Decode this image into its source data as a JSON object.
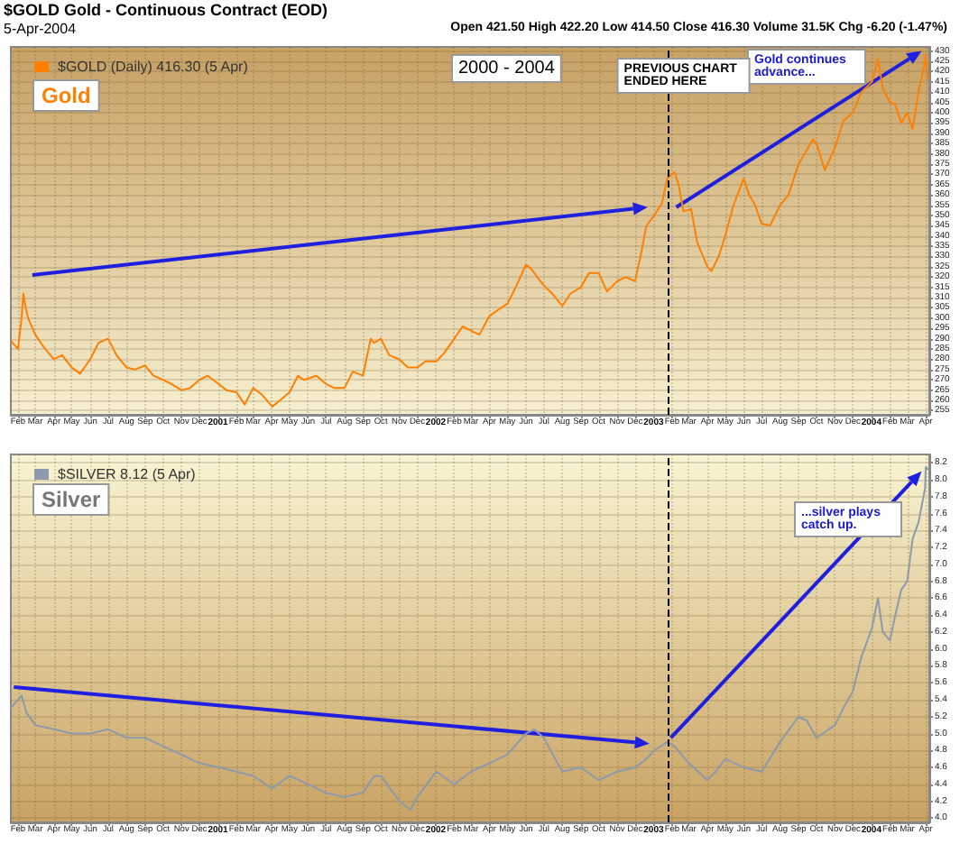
{
  "chart_data": [
    {
      "type": "line",
      "title": "$GOLD Gold - Continuous Contract (EOD)",
      "subtitle": "5-Apr-2004",
      "annotations": [
        "Open 421.50 High 422.20 Low 414.50 Close 416.30 Volume 31.5K Chg -6.20 (-1.47%)",
        "Gold",
        "2000 - 2004",
        "Gold continues advance..."
      ],
      "x": [
        "2000-01-20",
        "2000-02-01",
        "2000-02-07",
        "2000-02-10",
        "2000-02-14",
        "2000-02-18",
        "2000-03-01",
        "2000-03-15",
        "2000-04-01",
        "2000-04-15",
        "2000-05-01",
        "2000-05-15",
        "2000-06-01",
        "2000-06-15",
        "2000-07-01",
        "2000-07-15",
        "2000-08-01",
        "2000-08-15",
        "2000-09-01",
        "2000-09-15",
        "2000-10-01",
        "2000-10-15",
        "2000-11-01",
        "2000-11-15",
        "2000-12-01",
        "2000-12-15",
        "2001-01-02",
        "2001-01-15",
        "2001-02-01",
        "2001-02-15",
        "2001-03-01",
        "2001-03-15",
        "2001-04-02",
        "2001-04-15",
        "2001-05-01",
        "2001-05-15",
        "2001-05-25",
        "2001-06-15",
        "2001-07-01",
        "2001-07-15",
        "2001-08-01",
        "2001-08-15",
        "2001-09-01",
        "2001-09-14",
        "2001-09-20",
        "2001-10-01",
        "2001-10-15",
        "2001-11-01",
        "2001-11-15",
        "2001-12-01",
        "2001-12-15",
        "2002-01-02",
        "2002-01-15",
        "2002-02-01",
        "2002-02-15",
        "2002-03-01",
        "2002-03-15",
        "2002-04-01",
        "2002-04-15",
        "2002-05-01",
        "2002-05-15",
        "2002-06-01",
        "2002-06-10",
        "2002-06-20",
        "2002-07-01",
        "2002-07-15",
        "2002-08-01",
        "2002-08-15",
        "2002-09-01",
        "2002-09-15",
        "2002-10-01",
        "2002-10-15",
        "2002-11-01",
        "2002-11-15",
        "2002-12-01",
        "2002-12-10",
        "2002-12-20",
        "2003-01-02",
        "2003-01-15",
        "2003-01-24",
        "2003-02-05",
        "2003-02-12",
        "2003-02-20",
        "2003-03-05",
        "2003-03-15",
        "2003-03-25",
        "2003-04-01",
        "2003-04-08",
        "2003-04-20",
        "2003-05-01",
        "2003-05-15",
        "2003-06-01",
        "2003-06-10",
        "2003-06-20",
        "2003-07-01",
        "2003-07-15",
        "2003-08-01",
        "2003-08-15",
        "2003-09-01",
        "2003-09-15",
        "2003-09-25",
        "2003-10-01",
        "2003-10-15",
        "2003-11-01",
        "2003-11-15",
        "2003-12-01",
        "2003-12-15",
        "2004-01-02",
        "2004-01-12",
        "2004-01-20",
        "2004-02-01",
        "2004-02-10",
        "2004-02-20",
        "2004-03-01",
        "2004-03-10",
        "2004-03-20",
        "2004-03-31",
        "2004-04-01",
        "2004-04-05"
      ],
      "series": [
        {
          "name": "$GOLD (Daily) 416.30 (5 Apr)",
          "color": "#ff7f00",
          "values": [
            289,
            285,
            300,
            312,
            305,
            300,
            292,
            286,
            280,
            282,
            276,
            273,
            280,
            288,
            290,
            282,
            276,
            275,
            277,
            272,
            270,
            268,
            265,
            266,
            270,
            272,
            268,
            265,
            264,
            258,
            266,
            263,
            257,
            260,
            264,
            272,
            270,
            272,
            268,
            266,
            266,
            274,
            272,
            290,
            288,
            290,
            282,
            280,
            276,
            276,
            279,
            279,
            283,
            290,
            296,
            294,
            292,
            301,
            304,
            307,
            315,
            326,
            324,
            320,
            316,
            312,
            306,
            312,
            315,
            322,
            322,
            313,
            318,
            320,
            318,
            330,
            345,
            350,
            356,
            368,
            371,
            365,
            352,
            353,
            337,
            330,
            325,
            323,
            330,
            340,
            355,
            368,
            360,
            355,
            346,
            345,
            355,
            360,
            375,
            382,
            387,
            385,
            372,
            383,
            396,
            400,
            410,
            415,
            426,
            412,
            405,
            404,
            395,
            400,
            392,
            410,
            425,
            428,
            416.3
          ]
        }
      ],
      "xlim": [
        "2000-01-20",
        "2004-04-07"
      ],
      "xticks": [
        {
          "value": "2000-02",
          "label": "Feb"
        },
        {
          "value": "2000-03",
          "label": "Mar"
        },
        {
          "value": "2000-04",
          "label": "Apr"
        },
        {
          "value": "2000-05",
          "label": "May"
        },
        {
          "value": "2000-06",
          "label": "Jun"
        },
        {
          "value": "2000-07",
          "label": "Jul"
        },
        {
          "value": "2000-08",
          "label": "Aug"
        },
        {
          "value": "2000-09",
          "label": "Sep"
        },
        {
          "value": "2000-10",
          "label": "Oct"
        },
        {
          "value": "2000-11",
          "label": "Nov"
        },
        {
          "value": "2000-12",
          "label": "Dec"
        },
        {
          "value": "2001-01",
          "label": "2001"
        },
        {
          "value": "2001-02",
          "label": "Feb"
        },
        {
          "value": "2001-03",
          "label": "Mar"
        },
        {
          "value": "2001-04",
          "label": "Apr"
        },
        {
          "value": "2001-05",
          "label": "May"
        },
        {
          "value": "2001-06",
          "label": "Jun"
        },
        {
          "value": "2001-07",
          "label": "Jul"
        },
        {
          "value": "2001-08",
          "label": "Aug"
        },
        {
          "value": "2001-09",
          "label": "Sep"
        },
        {
          "value": "2001-10",
          "label": "Oct"
        },
        {
          "value": "2001-11",
          "label": "Nov"
        },
        {
          "value": "2001-12",
          "label": "Dec"
        },
        {
          "value": "2002-01",
          "label": "2002"
        },
        {
          "value": "2002-02",
          "label": "Feb"
        },
        {
          "value": "2002-03",
          "label": "Mar"
        },
        {
          "value": "2002-04",
          "label": "Apr"
        },
        {
          "value": "2002-05",
          "label": "May"
        },
        {
          "value": "2002-06",
          "label": "Jun"
        },
        {
          "value": "2002-07",
          "label": "Jul"
        },
        {
          "value": "2002-08",
          "label": "Aug"
        },
        {
          "value": "2002-09",
          "label": "Sep"
        },
        {
          "value": "2002-10",
          "label": "Oct"
        },
        {
          "value": "2002-11",
          "label": "Nov"
        },
        {
          "value": "2002-12",
          "label": "Dec"
        },
        {
          "value": "2003-01",
          "label": "2003"
        },
        {
          "value": "2003-02",
          "label": "Feb"
        },
        {
          "value": "2003-03",
          "label": "Mar"
        },
        {
          "value": "2003-04",
          "label": "Apr"
        },
        {
          "value": "2003-05",
          "label": "May"
        },
        {
          "value": "2003-06",
          "label": "Jun"
        },
        {
          "value": "2003-07",
          "label": "Jul"
        },
        {
          "value": "2003-08",
          "label": "Aug"
        },
        {
          "value": "2003-09",
          "label": "Sep"
        },
        {
          "value": "2003-10",
          "label": "Oct"
        },
        {
          "value": "2003-11",
          "label": "Nov"
        },
        {
          "value": "2003-12",
          "label": "Dec"
        },
        {
          "value": "2004-01",
          "label": "2004"
        },
        {
          "value": "2004-02",
          "label": "Feb"
        },
        {
          "value": "2004-03",
          "label": "Mar"
        },
        {
          "value": "2004-04",
          "label": "Apr"
        }
      ],
      "ylim": [
        253,
        432
      ],
      "yticks": [
        255,
        260,
        265,
        270,
        275,
        280,
        285,
        290,
        295,
        300,
        305,
        310,
        315,
        320,
        325,
        330,
        335,
        340,
        345,
        350,
        355,
        360,
        365,
        370,
        375,
        380,
        385,
        390,
        395,
        400,
        405,
        410,
        415,
        420,
        425,
        430
      ],
      "ref_lines": [
        {
          "axis": "x",
          "value": "2003-01-24",
          "label": "PREVIOUS CHART ENDED HERE",
          "color": "#000000",
          "line_style": "dashed"
        }
      ],
      "grid": true,
      "legend": "top left",
      "marker": "none",
      "line_style": "solid"
    },
    {
      "type": "line",
      "annotations": [
        "Silver",
        "...silver plays catch up."
      ],
      "x": [
        "2000-01-20",
        "2000-02-07",
        "2000-02-15",
        "2000-03-01",
        "2000-04-01",
        "2000-05-01",
        "2000-06-01",
        "2000-07-01",
        "2000-08-01",
        "2000-09-01",
        "2000-10-01",
        "2000-11-01",
        "2000-12-01",
        "2001-01-02",
        "2001-02-01",
        "2001-03-01",
        "2001-04-01",
        "2001-05-01",
        "2001-06-01",
        "2001-07-01",
        "2001-08-01",
        "2001-09-01",
        "2001-09-20",
        "2001-10-01",
        "2001-11-01",
        "2001-11-20",
        "2001-12-01",
        "2002-01-02",
        "2002-02-01",
        "2002-03-01",
        "2002-04-01",
        "2002-05-01",
        "2002-06-01",
        "2002-06-15",
        "2002-07-01",
        "2002-08-01",
        "2002-09-01",
        "2002-10-01",
        "2002-11-01",
        "2002-12-01",
        "2002-12-20",
        "2003-01-02",
        "2003-01-24",
        "2003-02-05",
        "2003-03-01",
        "2003-04-01",
        "2003-04-15",
        "2003-05-01",
        "2003-06-01",
        "2003-07-01",
        "2003-08-01",
        "2003-09-01",
        "2003-09-15",
        "2003-10-01",
        "2003-11-01",
        "2003-11-15",
        "2003-12-01",
        "2003-12-15",
        "2004-01-02",
        "2004-01-12",
        "2004-01-20",
        "2004-02-01",
        "2004-02-10",
        "2004-02-20",
        "2004-03-01",
        "2004-03-10",
        "2004-03-20",
        "2004-03-31",
        "2004-04-01",
        "2004-04-05"
      ],
      "series": [
        {
          "name": "$SILVER 8.12 (5 Apr)",
          "color": "#8c9aab",
          "values": [
            5.3,
            5.45,
            5.25,
            5.1,
            5.05,
            5.0,
            5.0,
            5.05,
            4.95,
            4.95,
            4.85,
            4.75,
            4.65,
            4.6,
            4.55,
            4.5,
            4.35,
            4.5,
            4.4,
            4.3,
            4.25,
            4.3,
            4.5,
            4.5,
            4.2,
            4.1,
            4.25,
            4.55,
            4.4,
            4.55,
            4.65,
            4.75,
            5.0,
            5.05,
            4.95,
            4.55,
            4.6,
            4.45,
            4.55,
            4.6,
            4.7,
            4.8,
            4.9,
            4.85,
            4.65,
            4.45,
            4.55,
            4.7,
            4.6,
            4.55,
            4.9,
            5.2,
            5.15,
            4.95,
            5.1,
            5.3,
            5.5,
            5.9,
            6.25,
            6.6,
            6.2,
            6.1,
            6.4,
            6.7,
            6.8,
            7.3,
            7.5,
            7.9,
            8.15,
            8.12
          ]
        }
      ],
      "xlim": [
        "2000-01-20",
        "2004-04-07"
      ],
      "xticks": [
        {
          "value": "2000-02",
          "label": "Feb"
        },
        {
          "value": "2000-03",
          "label": "Mar"
        },
        {
          "value": "2000-04",
          "label": "Apr"
        },
        {
          "value": "2000-05",
          "label": "May"
        },
        {
          "value": "2000-06",
          "label": "Jun"
        },
        {
          "value": "2000-07",
          "label": "Jul"
        },
        {
          "value": "2000-08",
          "label": "Aug"
        },
        {
          "value": "2000-09",
          "label": "Sep"
        },
        {
          "value": "2000-10",
          "label": "Oct"
        },
        {
          "value": "2000-11",
          "label": "Nov"
        },
        {
          "value": "2000-12",
          "label": "Dec"
        },
        {
          "value": "2001-01",
          "label": "2001"
        },
        {
          "value": "2001-02",
          "label": "Feb"
        },
        {
          "value": "2001-03",
          "label": "Mar"
        },
        {
          "value": "2001-04",
          "label": "Apr"
        },
        {
          "value": "2001-05",
          "label": "May"
        },
        {
          "value": "2001-06",
          "label": "Jun"
        },
        {
          "value": "2001-07",
          "label": "Jul"
        },
        {
          "value": "2001-08",
          "label": "Aug"
        },
        {
          "value": "2001-09",
          "label": "Sep"
        },
        {
          "value": "2001-10",
          "label": "Oct"
        },
        {
          "value": "2001-11",
          "label": "Nov"
        },
        {
          "value": "2001-12",
          "label": "Dec"
        },
        {
          "value": "2002-01",
          "label": "2002"
        },
        {
          "value": "2002-02",
          "label": "Feb"
        },
        {
          "value": "2002-03",
          "label": "Mar"
        },
        {
          "value": "2002-04",
          "label": "Apr"
        },
        {
          "value": "2002-05",
          "label": "May"
        },
        {
          "value": "2002-06",
          "label": "Jun"
        },
        {
          "value": "2002-07",
          "label": "Jul"
        },
        {
          "value": "2002-08",
          "label": "Aug"
        },
        {
          "value": "2002-09",
          "label": "Sep"
        },
        {
          "value": "2002-10",
          "label": "Oct"
        },
        {
          "value": "2002-11",
          "label": "Nov"
        },
        {
          "value": "2002-12",
          "label": "Dec"
        },
        {
          "value": "2003-01",
          "label": "2003"
        },
        {
          "value": "2003-02",
          "label": "Feb"
        },
        {
          "value": "2003-03",
          "label": "Mar"
        },
        {
          "value": "2003-04",
          "label": "Apr"
        },
        {
          "value": "2003-05",
          "label": "May"
        },
        {
          "value": "2003-06",
          "label": "Jun"
        },
        {
          "value": "2003-07",
          "label": "Jul"
        },
        {
          "value": "2003-08",
          "label": "Aug"
        },
        {
          "value": "2003-09",
          "label": "Sep"
        },
        {
          "value": "2003-10",
          "label": "Oct"
        },
        {
          "value": "2003-11",
          "label": "Nov"
        },
        {
          "value": "2003-12",
          "label": "Dec"
        },
        {
          "value": "2004-01",
          "label": "2004"
        },
        {
          "value": "2004-02",
          "label": "Feb"
        },
        {
          "value": "2004-03",
          "label": "Mar"
        },
        {
          "value": "2004-04",
          "label": "Apr"
        }
      ],
      "ylim": [
        3.95,
        8.3
      ],
      "yticks": [
        {
          "value": 4,
          "label": "4.0"
        },
        4.2,
        4.4,
        4.6,
        4.8,
        {
          "value": 5,
          "label": "5.0"
        },
        5.2,
        5.4,
        5.6,
        5.8,
        {
          "value": 6,
          "label": "6.0"
        },
        6.2,
        6.4,
        6.6,
        6.8,
        {
          "value": 7,
          "label": "7.0"
        },
        7.2,
        7.4,
        7.6,
        7.8,
        {
          "value": 8,
          "label": "8.0"
        },
        8.2
      ],
      "ref_lines": [
        {
          "axis": "x",
          "value": "2003-01-24",
          "color": "#000000",
          "line_style": "dashed"
        }
      ],
      "grid": true,
      "legend": "top left",
      "marker": "none",
      "line_style": "solid"
    }
  ]
}
